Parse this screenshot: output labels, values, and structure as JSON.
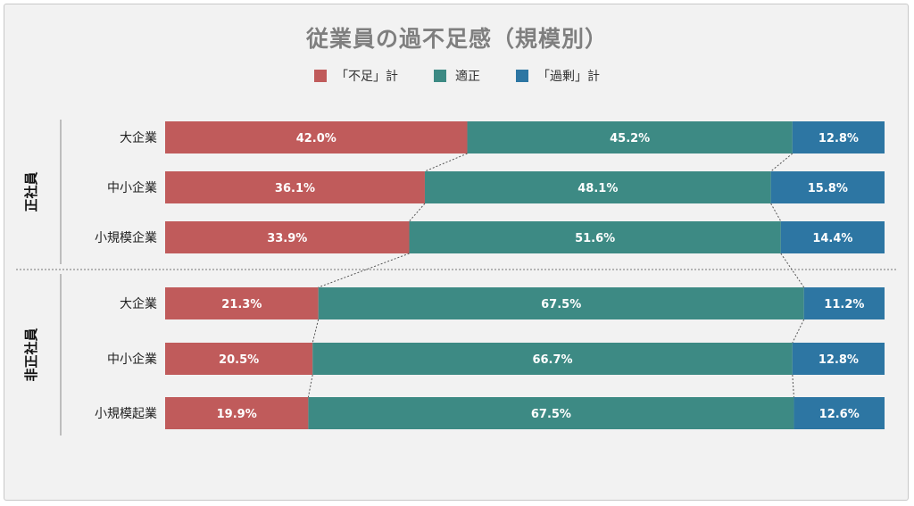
{
  "chart_data": {
    "type": "bar",
    "orientation": "horizontal",
    "stacked": "percent",
    "title": "従業員の過不足感（規模別）",
    "legend_position": "top",
    "series": [
      {
        "name": "「不足」計",
        "color": "#c05b5b"
      },
      {
        "name": "適正",
        "color": "#3d8a84"
      },
      {
        "name": "「過剰」計",
        "color": "#2d76a3"
      }
    ],
    "groups": [
      {
        "label": "正社員",
        "rows": [
          {
            "category": "大企業",
            "values": [
              42.0,
              45.2,
              12.8
            ],
            "labels": [
              "42.0%",
              "45.2%",
              "12.8%"
            ]
          },
          {
            "category": "中小企業",
            "values": [
              36.1,
              48.1,
              15.8
            ],
            "labels": [
              "36.1%",
              "48.1%",
              "15.8%"
            ]
          },
          {
            "category": "小規模企業",
            "values": [
              33.9,
              51.6,
              14.4
            ],
            "labels": [
              "33.9%",
              "51.6%",
              "14.4%"
            ]
          }
        ]
      },
      {
        "label": "非正社員",
        "rows": [
          {
            "category": "大企業",
            "values": [
              21.3,
              67.5,
              11.2
            ],
            "labels": [
              "21.3%",
              "67.5%",
              "11.2%"
            ]
          },
          {
            "category": "中小企業",
            "values": [
              20.5,
              66.7,
              12.8
            ],
            "labels": [
              "20.5%",
              "66.7%",
              "12.8%"
            ]
          },
          {
            "category": "小規模起業",
            "values": [
              19.9,
              67.5,
              12.6
            ],
            "labels": [
              "19.9%",
              "67.5%",
              "12.6%"
            ]
          }
        ]
      }
    ]
  }
}
